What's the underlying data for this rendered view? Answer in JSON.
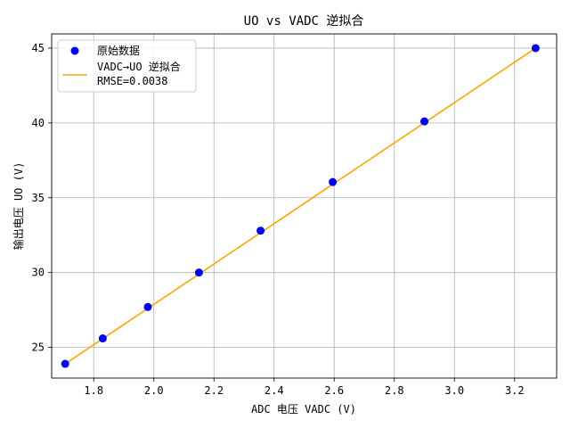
{
  "chart_data": {
    "type": "scatter",
    "title": "UO vs VADC 逆拟合",
    "xlabel": "ADC 电压 VADC (V)",
    "ylabel": "输出电压 UO (V)",
    "xlim": [
      1.66,
      3.34
    ],
    "ylim": [
      22.95,
      45.95
    ],
    "xticks": [
      1.8,
      2.0,
      2.2,
      2.4,
      2.6,
      2.8,
      3.0,
      3.2
    ],
    "yticks": [
      25,
      30,
      35,
      40,
      45
    ],
    "xtick_labels": [
      "1.8",
      "2.0",
      "2.2",
      "2.4",
      "2.6",
      "2.8",
      "3.0",
      "3.2"
    ],
    "ytick_labels": [
      "25",
      "30",
      "35",
      "40",
      "45"
    ],
    "grid": true,
    "legend_position": "top-left",
    "series": [
      {
        "name": "原始数据",
        "kind": "scatter",
        "color": "#0000ff",
        "points": [
          {
            "x": 1.705,
            "y": 23.9
          },
          {
            "x": 1.83,
            "y": 25.6
          },
          {
            "x": 1.98,
            "y": 27.7
          },
          {
            "x": 2.15,
            "y": 30.0
          },
          {
            "x": 2.355,
            "y": 32.8
          },
          {
            "x": 2.595,
            "y": 36.05
          },
          {
            "x": 2.9,
            "y": 40.1
          },
          {
            "x": 3.27,
            "y": 45.0
          }
        ]
      },
      {
        "name": "VADC→UO 逆拟合",
        "name_line2": "RMSE=0.0038",
        "kind": "line",
        "color": "#ffa500",
        "points": [
          {
            "x": 1.705,
            "y": 23.9
          },
          {
            "x": 3.27,
            "y": 45.0
          }
        ]
      }
    ]
  }
}
